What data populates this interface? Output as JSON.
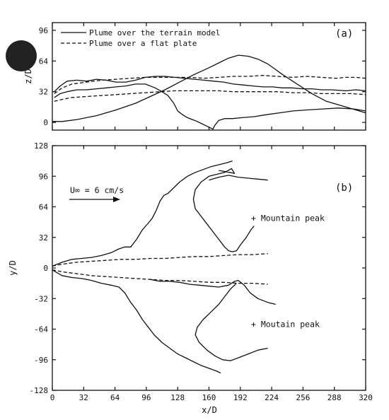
{
  "chart_data": [
    {
      "panel": "a",
      "type": "line",
      "panel_label": "(a)",
      "xlabel": "",
      "ylabel": "z/D",
      "xlim": [
        0,
        320
      ],
      "ylim": [
        -8,
        104
      ],
      "yticks": [
        "96",
        "64",
        "32",
        "0"
      ],
      "ytick_values": [
        96,
        64,
        32,
        0
      ],
      "legend": [
        {
          "label": "Plume over the terrain model",
          "style": "solid"
        },
        {
          "label": "Plume over a flat plate",
          "style": "dashed"
        }
      ],
      "series": [
        {
          "role": "terrain-profile",
          "style": "solid",
          "x": [
            0,
            10,
            25,
            45,
            65,
            85,
            100,
            115,
            130,
            145,
            160,
            170,
            180,
            190,
            200,
            210,
            220,
            235,
            250,
            265,
            280,
            300,
            320
          ],
          "y": [
            1,
            1,
            3,
            7,
            13,
            20,
            27,
            34,
            42,
            50,
            57,
            62,
            67,
            70,
            69,
            66,
            61,
            50,
            40,
            30,
            22,
            16,
            10
          ]
        },
        {
          "role": "terrain-plume-upper",
          "style": "solid",
          "x": [
            2,
            8,
            15,
            25,
            35,
            45,
            55,
            65,
            75,
            85,
            95,
            105,
            115,
            125,
            135,
            145,
            155,
            165,
            175,
            185,
            195,
            205,
            215,
            225,
            235,
            245,
            255,
            265,
            275,
            285,
            300,
            310,
            320
          ],
          "y": [
            32,
            38,
            43,
            44,
            43,
            45,
            44,
            42,
            42,
            44,
            47,
            48,
            48,
            47,
            46,
            45,
            44,
            43,
            42,
            40,
            39,
            38,
            37,
            37,
            36,
            36,
            35,
            35,
            34,
            34,
            33,
            34,
            33
          ]
        },
        {
          "role": "terrain-plume-lower",
          "style": "solid",
          "x": [
            2,
            8,
            15,
            25,
            35,
            45,
            55,
            65,
            75,
            85,
            95,
            105,
            112,
            118,
            124,
            128,
            133,
            138,
            143,
            148,
            152,
            156,
            160,
            164,
            166,
            170,
            176,
            184,
            194,
            206,
            218,
            232,
            246,
            260,
            276,
            292,
            308,
            320
          ],
          "y": [
            26,
            30,
            32,
            34,
            34,
            35,
            36,
            37,
            38,
            40,
            40,
            36,
            32,
            28,
            20,
            12,
            8,
            5,
            3,
            1,
            -1,
            -3,
            -5,
            -7,
            -3,
            2,
            4,
            4,
            5,
            6,
            8,
            10,
            12,
            13,
            14,
            15,
            14,
            12
          ]
        },
        {
          "role": "flat-plume-upper",
          "style": "dashed",
          "x": [
            2,
            10,
            20,
            35,
            50,
            65,
            80,
            95,
            110,
            125,
            140,
            155,
            170,
            185,
            200,
            215,
            230,
            245,
            260,
            275,
            290,
            300,
            310,
            320
          ],
          "y": [
            30,
            36,
            40,
            42,
            44,
            45,
            46,
            47,
            47,
            47,
            47,
            46,
            47,
            48,
            48,
            49,
            48,
            47,
            48,
            47,
            46,
            47,
            47,
            46
          ]
        },
        {
          "role": "flat-plume-lower",
          "style": "dashed",
          "x": [
            2,
            10,
            20,
            35,
            50,
            65,
            80,
            95,
            110,
            125,
            140,
            155,
            170,
            185,
            200,
            215,
            230,
            245,
            260,
            275,
            290,
            305,
            320
          ],
          "y": [
            22,
            24,
            26,
            27,
            28,
            29,
            30,
            31,
            32,
            33,
            33,
            33,
            33,
            32,
            32,
            32,
            32,
            31,
            31,
            30,
            30,
            30,
            29
          ]
        }
      ]
    },
    {
      "panel": "b",
      "type": "line",
      "panel_label": "(b)",
      "xlabel": "x/D",
      "ylabel": "y/D",
      "xlim": [
        0,
        320
      ],
      "ylim": [
        -128,
        128
      ],
      "xticks": [
        "0",
        "32",
        "64",
        "96",
        "128",
        "160",
        "192",
        "224",
        "256",
        "288",
        "320"
      ],
      "xtick_values": [
        0,
        32,
        64,
        96,
        128,
        160,
        192,
        224,
        256,
        288,
        320
      ],
      "yticks": [
        "128",
        "96",
        "64",
        "32",
        "0",
        "-32",
        "-64",
        "-96",
        "-128"
      ],
      "ytick_values": [
        128,
        96,
        64,
        32,
        0,
        -32,
        -64,
        -96,
        -128
      ],
      "velocity_label": "U∞ = 6 cm/s",
      "annotations": [
        {
          "text": "+ Mountain peak",
          "x": 203,
          "y": 52
        },
        {
          "text": "+ Moutain peak",
          "x": 203,
          "y": -59
        }
      ],
      "series": [
        {
          "role": "terrain-plume-outer-upper",
          "style": "solid",
          "x": [
            0,
            5,
            10,
            20,
            30,
            40,
            50,
            60,
            68,
            74,
            80,
            86,
            92,
            98,
            102,
            106,
            110,
            114,
            118,
            124,
            130,
            138,
            146,
            154,
            162,
            170,
            178,
            184
          ],
          "y": [
            2,
            4,
            6,
            9,
            10,
            11,
            13,
            16,
            20,
            22,
            22,
            30,
            40,
            47,
            52,
            60,
            70,
            76,
            78,
            84,
            90,
            96,
            100,
            103,
            106,
            108,
            110,
            112
          ]
        },
        {
          "role": "terrain-plume-inner-upper",
          "style": "solid",
          "x": [
            170,
            176,
            181,
            186,
            183,
            176,
            168,
            160,
            152,
            146,
            144,
            146,
            152,
            158,
            164,
            170,
            176,
            180,
            184,
            188,
            192,
            198,
            203,
            206
          ],
          "y": [
            102,
            101,
            100,
            99,
            104,
            100,
            98,
            96,
            90,
            82,
            72,
            62,
            54,
            46,
            38,
            30,
            22,
            18,
            17,
            18,
            24,
            32,
            40,
            44
          ]
        },
        {
          "role": "terrain-plume-arm-upper",
          "style": "solid",
          "x": [
            160,
            170,
            180,
            190,
            200,
            210,
            220
          ],
          "y": [
            92,
            95,
            97,
            95,
            94,
            93,
            92
          ]
        },
        {
          "role": "terrain-plume-outer-lower",
          "style": "solid",
          "x": [
            0,
            5,
            10,
            20,
            30,
            40,
            50,
            60,
            68,
            74,
            80,
            86,
            92,
            98,
            104,
            112,
            120,
            128,
            136,
            144,
            152,
            160,
            168,
            172
          ],
          "y": [
            -2,
            -5,
            -8,
            -10,
            -11,
            -13,
            -16,
            -18,
            -20,
            -26,
            -36,
            -44,
            -54,
            -62,
            -70,
            -78,
            -84,
            -90,
            -94,
            -98,
            -102,
            -105,
            -108,
            -110
          ]
        },
        {
          "role": "terrain-plume-inner-lower",
          "style": "solid",
          "x": [
            100,
            110,
            120,
            130,
            140,
            150,
            160,
            170,
            180,
            186,
            190,
            196,
            202,
            210,
            220,
            228
          ],
          "y": [
            -12,
            -14,
            -14,
            -15,
            -17,
            -18,
            -19,
            -20,
            -18,
            -14,
            -13,
            -18,
            -26,
            -32,
            -36,
            -38
          ]
        },
        {
          "role": "terrain-plume-loop-lower",
          "style": "solid",
          "x": [
            188,
            182,
            176,
            170,
            162,
            154,
            148,
            146,
            150,
            158,
            166,
            174,
            182,
            190,
            200,
            210,
            220
          ],
          "y": [
            -16,
            -22,
            -30,
            -38,
            -46,
            -54,
            -62,
            -70,
            -78,
            -86,
            -92,
            -96,
            -97,
            -94,
            -90,
            -86,
            -84
          ]
        },
        {
          "role": "flat-plume-upper",
          "style": "dashed",
          "x": [
            0,
            10,
            25,
            40,
            55,
            70,
            85,
            100,
            115,
            130,
            145,
            160,
            175,
            190,
            205,
            220
          ],
          "y": [
            2,
            4,
            6,
            7,
            8,
            9,
            9,
            10,
            10,
            11,
            12,
            12,
            13,
            14,
            14,
            15
          ]
        },
        {
          "role": "flat-plume-lower",
          "style": "dashed",
          "x": [
            0,
            10,
            25,
            40,
            55,
            70,
            85,
            100,
            115,
            130,
            145,
            160,
            175,
            190,
            205,
            220
          ],
          "y": [
            -2,
            -4,
            -6,
            -8,
            -9,
            -10,
            -11,
            -12,
            -13,
            -13,
            -14,
            -15,
            -15,
            -16,
            -16,
            -17
          ]
        }
      ]
    }
  ]
}
